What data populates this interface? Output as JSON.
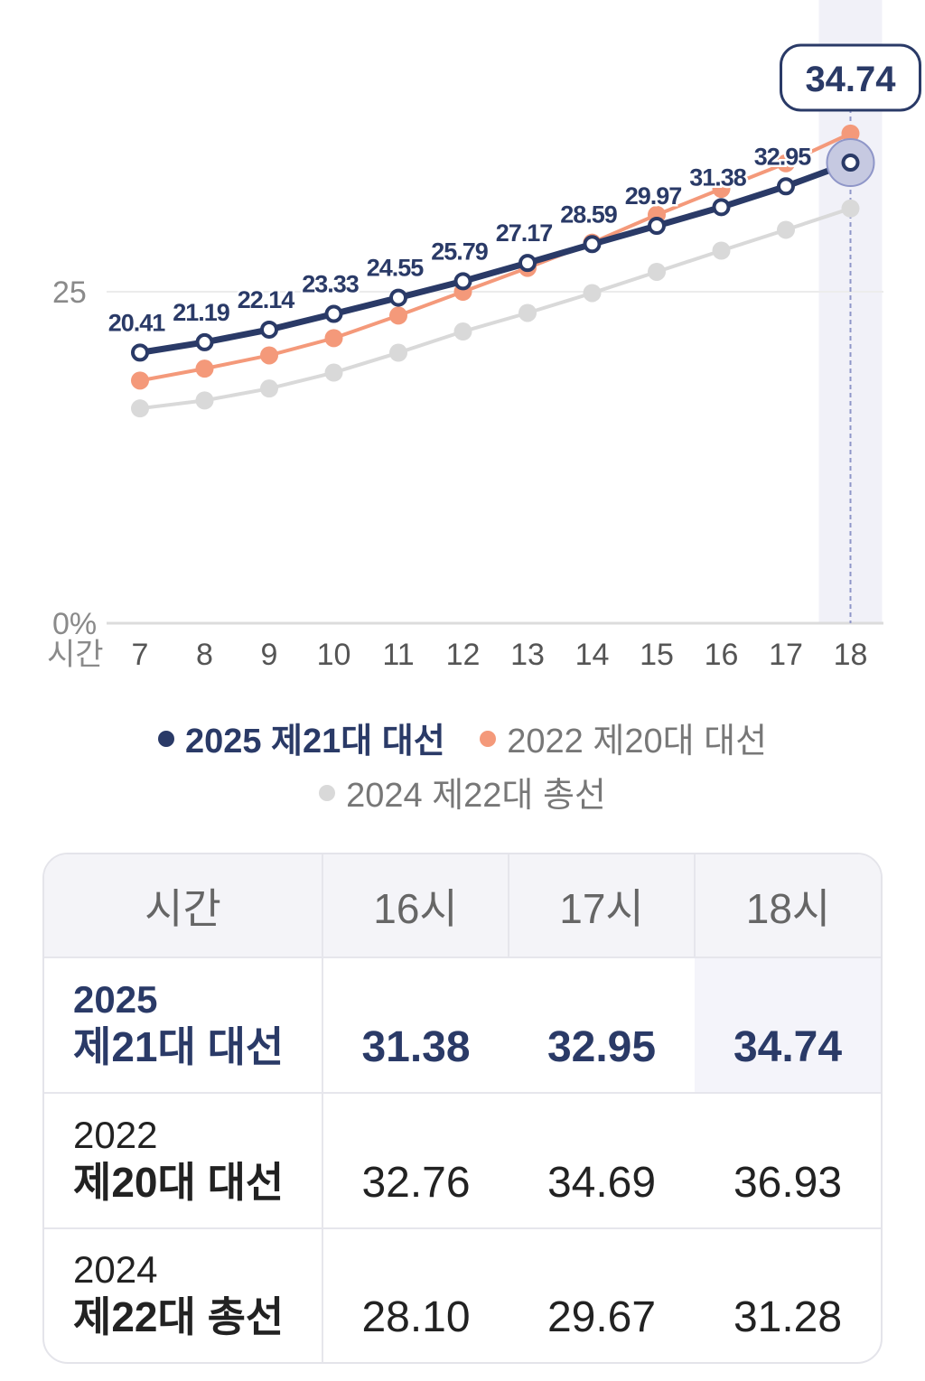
{
  "chart_data": {
    "type": "line",
    "x_axis_title": "시간",
    "categories": [
      "7",
      "8",
      "9",
      "10",
      "11",
      "12",
      "13",
      "14",
      "15",
      "16",
      "17",
      "18"
    ],
    "y_ticks": [
      {
        "value": 0,
        "label": "0%"
      },
      {
        "value": 25,
        "label": "25"
      }
    ],
    "ylim": [
      0,
      37
    ],
    "highlight_category": "18",
    "highlight_label": "34.74",
    "grid": true,
    "legend_position": "bottom",
    "series": [
      {
        "name": "2025 제21대 대선",
        "color": "#2a3a67",
        "primary": true,
        "values": [
          20.41,
          21.19,
          22.14,
          23.33,
          24.55,
          25.79,
          27.17,
          28.59,
          29.97,
          31.38,
          32.95,
          34.74
        ],
        "value_labels": [
          "20.41",
          "21.19",
          "22.14",
          "23.33",
          "24.55",
          "25.79",
          "27.17",
          "28.59",
          "29.97",
          "31.38",
          "32.95",
          ""
        ]
      },
      {
        "name": "2022 제20대 대선",
        "color": "#f4997a",
        "values": [
          18.3,
          19.2,
          20.2,
          21.5,
          23.2,
          25.0,
          26.8,
          28.7,
          30.8,
          32.76,
          34.69,
          36.93
        ]
      },
      {
        "name": "2024 제22대 총선",
        "color": "#d9d9d9",
        "values": [
          16.2,
          16.8,
          17.7,
          18.9,
          20.4,
          22.0,
          23.4,
          24.9,
          26.5,
          28.1,
          29.67,
          31.28
        ]
      }
    ]
  },
  "table": {
    "header": {
      "label": "시간",
      "cols": [
        "16시",
        "17시",
        "18시"
      ]
    },
    "rows": [
      {
        "year": "2025",
        "name": "제21대 대선",
        "values": [
          "31.38",
          "32.95",
          "34.74"
        ]
      },
      {
        "year": "2022",
        "name": "제20대 대선",
        "values": [
          "32.76",
          "34.69",
          "36.93"
        ]
      },
      {
        "year": "2024",
        "name": "제22대 총선",
        "values": [
          "28.10",
          "29.67",
          "31.28"
        ]
      }
    ]
  }
}
